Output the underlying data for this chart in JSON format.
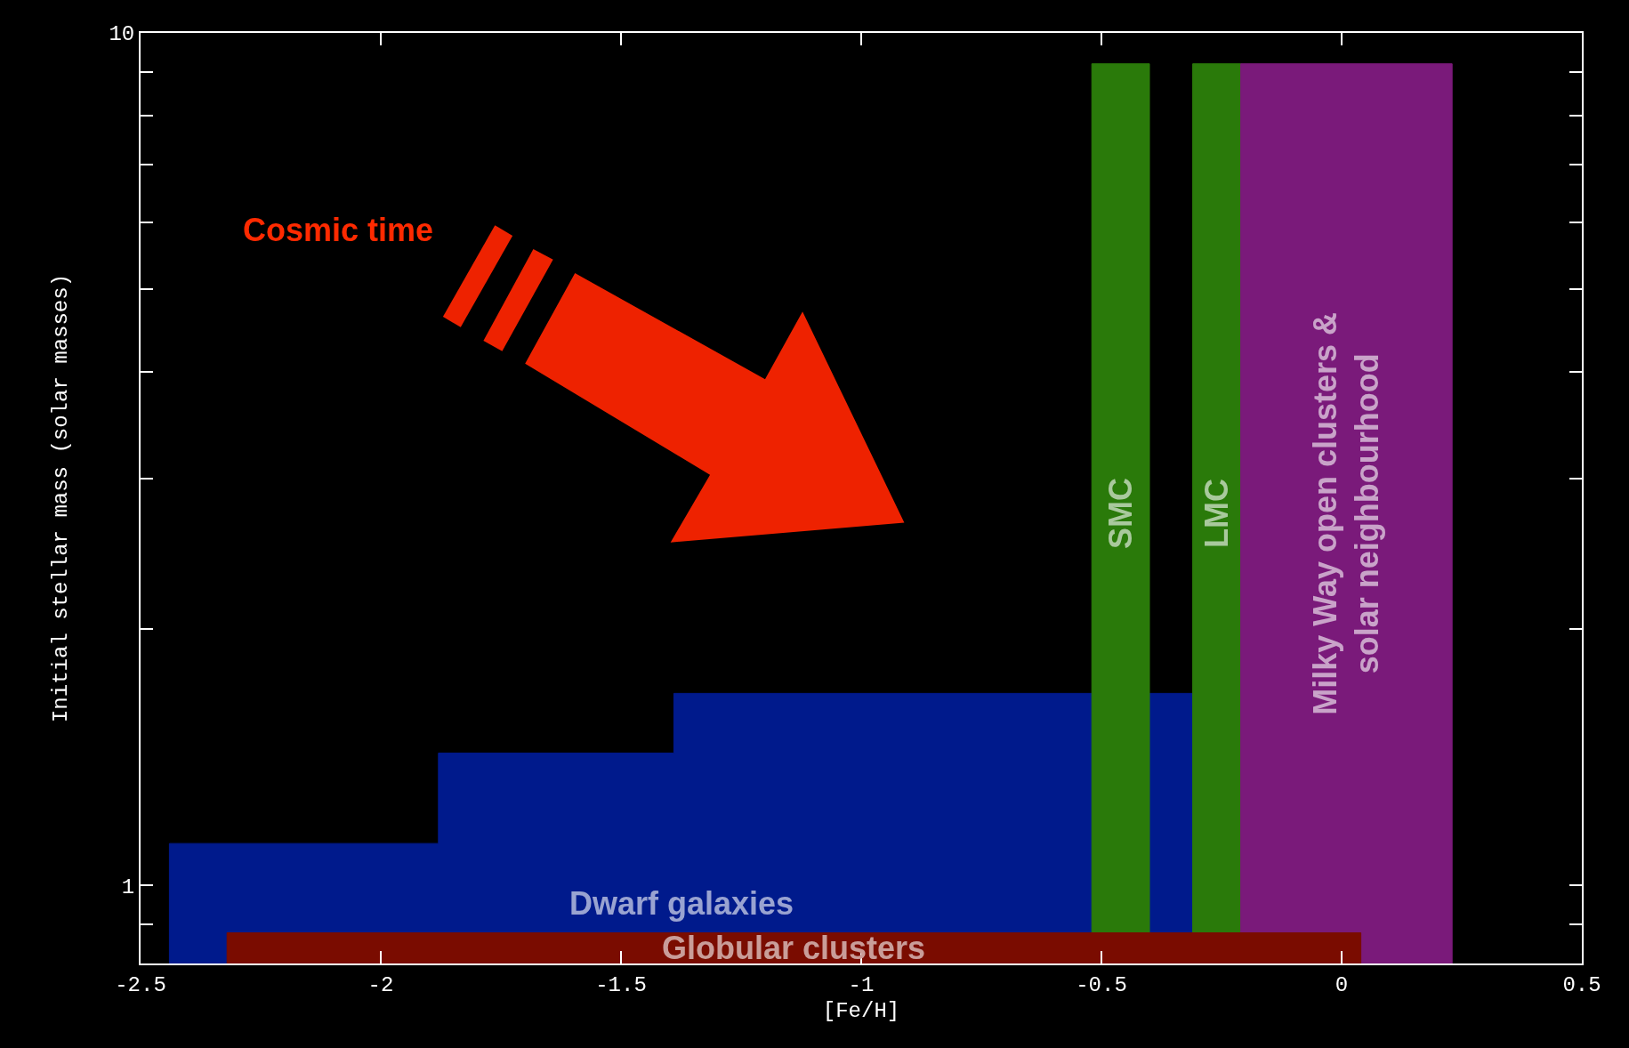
{
  "chart_data": {
    "type": "area",
    "xlabel": "[Fe/H]",
    "ylabel": "Initial stellar mass (solar masses)",
    "log": "y",
    "xlim": [
      -2.5,
      0.5
    ],
    "xticks": [
      -2.5,
      -2,
      -1.5,
      -1,
      -0.5,
      0,
      0.5
    ],
    "ylim": [
      0.81,
      10
    ],
    "yticks": [
      {
        "value": 0.9,
        "label": null
      },
      1,
      {
        "value": 2,
        "label": null
      },
      {
        "value": 3,
        "label": null
      },
      {
        "value": 4,
        "label": null
      },
      {
        "value": 5,
        "label": null
      },
      {
        "value": 6,
        "label": null
      },
      {
        "value": 7,
        "label": null
      },
      {
        "value": 8,
        "label": null
      },
      {
        "value": 9,
        "label": null
      },
      10
    ],
    "series": [
      {
        "name": "Dwarf galaxies",
        "color": "#001a8c",
        "x": [
          -2.44,
          -1.88,
          -1.88,
          -1.39,
          -1.39,
          -0.31
        ],
        "values": [
          1.12,
          1.12,
          1.43,
          1.43,
          1.68,
          1.68
        ]
      },
      {
        "name": "SMC",
        "color": "#2a7a0a",
        "x": [
          -0.52,
          -0.4
        ],
        "values": [
          9.2,
          9.2
        ]
      },
      {
        "name": "LMC",
        "color": "#2a7a0a",
        "x": [
          -0.31,
          -0.21
        ],
        "values": [
          9.2,
          9.2
        ]
      },
      {
        "name": "Milky Way open clusters &\nsolar neighbourhood",
        "color": "#7a1a7a",
        "x": [
          -0.21,
          0.23
        ],
        "values": [
          9.2,
          9.2
        ]
      },
      {
        "name": "Globular clusters",
        "color": "#7a0c00",
        "x": [
          -2.32,
          0.04
        ],
        "values": [
          0.88,
          0.88
        ]
      }
    ],
    "annotations": [
      "Cosmic time"
    ]
  }
}
